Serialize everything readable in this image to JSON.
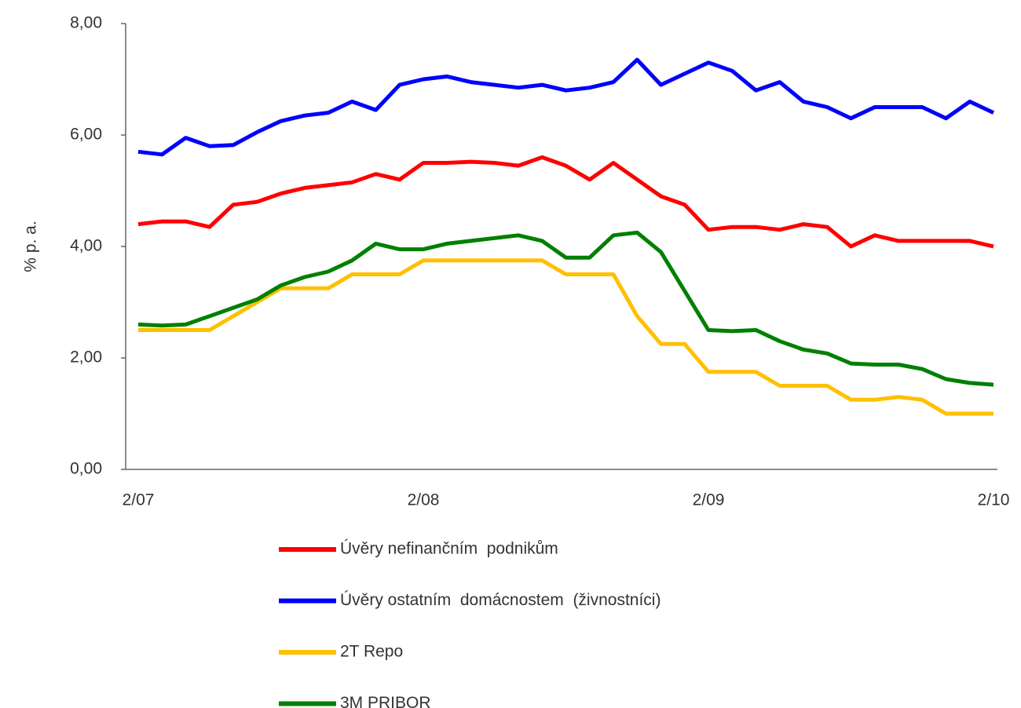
{
  "chart_data": {
    "type": "line",
    "y_label": "% p. a.",
    "categories": [
      "2/07",
      null,
      null,
      null,
      null,
      null,
      null,
      null,
      null,
      null,
      null,
      null,
      "2/08",
      null,
      null,
      null,
      null,
      null,
      null,
      null,
      null,
      null,
      null,
      null,
      "2/09",
      null,
      null,
      null,
      null,
      null,
      null,
      null,
      null,
      null,
      null,
      null,
      "2/10"
    ],
    "series": [
      {
        "name": "Úvěry nefinančním  podnikům",
        "color": "#ff0000",
        "values": [
          4.4,
          4.45,
          4.45,
          4.35,
          4.75,
          4.8,
          4.95,
          5.05,
          5.1,
          5.15,
          5.3,
          5.2,
          5.5,
          5.5,
          5.52,
          5.5,
          5.45,
          5.6,
          5.45,
          5.2,
          5.5,
          5.2,
          4.9,
          4.75,
          4.3,
          4.35,
          4.35,
          4.3,
          4.4,
          4.35,
          4.0,
          4.2,
          4.1,
          4.1,
          4.1,
          4.1,
          4.0
        ]
      },
      {
        "name": "Úvěry ostatním  domácnostem  (živnostníci)",
        "color": "#0000ff",
        "values": [
          5.7,
          5.65,
          5.95,
          5.8,
          5.82,
          6.05,
          6.25,
          6.35,
          6.4,
          6.6,
          6.45,
          6.9,
          7.0,
          7.05,
          6.95,
          6.9,
          6.85,
          6.9,
          6.8,
          6.85,
          6.95,
          7.35,
          6.9,
          7.1,
          7.3,
          7.15,
          6.8,
          6.95,
          6.6,
          6.5,
          6.3,
          6.5,
          6.5,
          6.5,
          6.3,
          6.6,
          6.4
        ]
      },
      {
        "name": "2T Repo",
        "color": "#ffc000",
        "values": [
          2.5,
          2.5,
          2.5,
          2.5,
          2.75,
          3.0,
          3.25,
          3.25,
          3.25,
          3.5,
          3.5,
          3.5,
          3.75,
          3.75,
          3.75,
          3.75,
          3.75,
          3.75,
          3.5,
          3.5,
          3.5,
          2.75,
          2.25,
          2.25,
          1.75,
          1.75,
          1.75,
          1.5,
          1.5,
          1.5,
          1.25,
          1.25,
          1.3,
          1.25,
          1.0,
          1.0,
          1.0
        ]
      },
      {
        "name": "3M PRIBOR",
        "color": "#008000",
        "values": [
          2.6,
          2.58,
          2.6,
          2.75,
          2.9,
          3.05,
          3.3,
          3.45,
          3.55,
          3.75,
          4.05,
          3.95,
          3.95,
          4.05,
          4.1,
          4.15,
          4.2,
          4.1,
          3.8,
          3.8,
          4.2,
          4.25,
          3.9,
          3.2,
          2.5,
          2.48,
          2.5,
          2.3,
          2.15,
          2.08,
          1.9,
          1.88,
          1.88,
          1.8,
          1.62,
          1.55,
          1.52
        ]
      }
    ],
    "ylim": [
      0,
      8
    ],
    "yticks": [
      {
        "value": 0,
        "label": "0,00"
      },
      {
        "value": 2,
        "label": "2,00"
      },
      {
        "value": 4,
        "label": "4,00"
      },
      {
        "value": 6,
        "label": "6,00"
      },
      {
        "value": 8,
        "label": "8,00"
      }
    ],
    "legend": "bottom"
  }
}
